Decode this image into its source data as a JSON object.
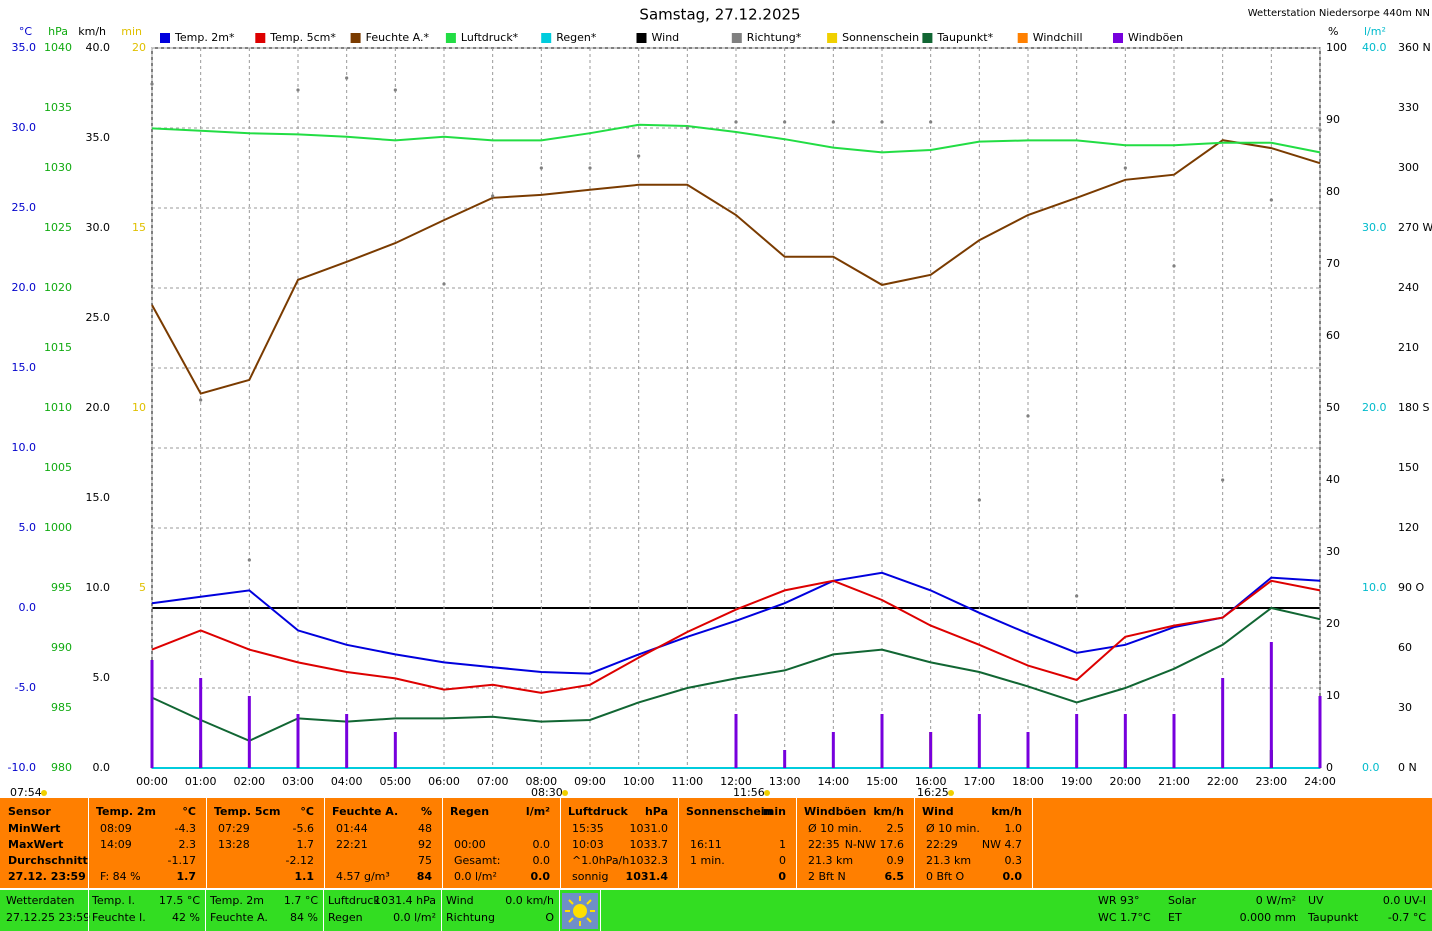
{
  "chart_data": {
    "type": "line",
    "title": "Samstag, 27.12.2025",
    "station": "Wetterstation Niedersorpe 440m NN",
    "grid": true,
    "xlim": [
      0,
      24
    ],
    "xticks": [
      {
        "value": 0,
        "label": "00:00"
      },
      {
        "value": 1,
        "label": "01:00"
      },
      {
        "value": 2,
        "label": "02:00"
      },
      {
        "value": 3,
        "label": "03:00"
      },
      {
        "value": 4,
        "label": "04:00"
      },
      {
        "value": 5,
        "label": "05:00"
      },
      {
        "value": 6,
        "label": "06:00"
      },
      {
        "value": 7,
        "label": "07:00"
      },
      {
        "value": 8,
        "label": "08:00"
      },
      {
        "value": 9,
        "label": "09:00"
      },
      {
        "value": 10,
        "label": "10:00"
      },
      {
        "value": 11,
        "label": "11:00"
      },
      {
        "value": 12,
        "label": "12:00"
      },
      {
        "value": 13,
        "label": "13:00"
      },
      {
        "value": 14,
        "label": "14:00"
      },
      {
        "value": 15,
        "label": "15:00"
      },
      {
        "value": 16,
        "label": "16:00"
      },
      {
        "value": 17,
        "label": "17:00"
      },
      {
        "value": 18,
        "label": "18:00"
      },
      {
        "value": 19,
        "label": "19:00"
      },
      {
        "value": 20,
        "label": "20:00"
      },
      {
        "value": 21,
        "label": "21:00"
      },
      {
        "value": 22,
        "label": "22:00"
      },
      {
        "value": 23,
        "label": "23:00"
      },
      {
        "value": 24,
        "label": "24:00"
      }
    ],
    "x": [
      0,
      1,
      2,
      3,
      4,
      5,
      6,
      7,
      8,
      9,
      10,
      11,
      12,
      13,
      14,
      15,
      16,
      17,
      18,
      19,
      20,
      21,
      22,
      23,
      24
    ],
    "sun_marks": [
      "07:54",
      "08:30",
      "11:56",
      "16:25"
    ],
    "axes": {
      "temp": {
        "unit": "°C",
        "color": "#0000cc",
        "lim": [
          -10,
          35
        ],
        "ticks": [
          {
            "value": -10,
            "label": "-10.0"
          },
          {
            "value": -5,
            "label": "-5.0"
          },
          {
            "value": 0,
            "label": "0.0"
          },
          {
            "value": 5,
            "label": "5.0"
          },
          {
            "value": 10,
            "label": "10.0"
          },
          {
            "value": 15,
            "label": "15.0"
          },
          {
            "value": 20,
            "label": "20.0"
          },
          {
            "value": 25,
            "label": "25.0"
          },
          {
            "value": 30,
            "label": "30.0"
          },
          {
            "value": 35,
            "label": "35.0"
          }
        ]
      },
      "pressure": {
        "unit": "hPa",
        "color": "#11aa11",
        "lim": [
          980,
          1040
        ],
        "ticks": [
          980,
          985,
          990,
          995,
          1000,
          1005,
          1010,
          1015,
          1020,
          1025,
          1030,
          1035,
          1040
        ]
      },
      "wind": {
        "unit": "km/h",
        "color": "#000000",
        "lim": [
          0,
          40
        ],
        "ticks": [
          {
            "value": 0,
            "label": "0.0"
          },
          {
            "value": 5,
            "label": "5.0"
          },
          {
            "value": 10,
            "label": "10.0"
          },
          {
            "value": 15,
            "label": "15.0"
          },
          {
            "value": 20,
            "label": "20.0"
          },
          {
            "value": 25,
            "label": "25.0"
          },
          {
            "value": 30,
            "label": "30.0"
          },
          {
            "value": 35,
            "label": "35.0"
          },
          {
            "value": 40,
            "label": "40.0"
          }
        ]
      },
      "sun": {
        "unit": "min",
        "color": "#e0c000",
        "lim": [
          0,
          20
        ],
        "ticks": [
          5,
          10,
          15,
          20
        ]
      },
      "humidity": {
        "unit": "%",
        "color": "#000000",
        "lim": [
          0,
          100
        ],
        "ticks": [
          0,
          10,
          20,
          30,
          40,
          50,
          60,
          70,
          80,
          90,
          100
        ]
      },
      "rain": {
        "unit": "l/m²",
        "color": "#00bbcc",
        "lim": [
          0,
          40
        ],
        "ticks": [
          {
            "value": 0,
            "label": "0.0"
          },
          {
            "value": 10,
            "label": "10.0"
          },
          {
            "value": 20,
            "label": "20.0"
          },
          {
            "value": 30,
            "label": "30.0"
          },
          {
            "value": 40,
            "label": "40.0"
          }
        ]
      },
      "direction": {
        "color": "#000000",
        "lim": [
          0,
          360
        ],
        "ticks": [
          {
            "value": 0,
            "label": "0 N"
          },
          30,
          60,
          {
            "value": 90,
            "label": "90 O"
          },
          120,
          150,
          {
            "value": 180,
            "label": "180 S"
          },
          210,
          240,
          {
            "value": 270,
            "label": "270 W"
          },
          300,
          330,
          {
            "value": 360,
            "label": "360 N"
          }
        ]
      }
    },
    "series": [
      {
        "name": "Temp. 2m*",
        "color": "#0000dd",
        "axis": "temp",
        "style": "line",
        "values": [
          0.3,
          0.7,
          1.1,
          -1.4,
          -2.3,
          -2.9,
          -3.4,
          -3.7,
          -4.0,
          -4.1,
          -2.9,
          -1.8,
          -0.8,
          0.3,
          1.7,
          2.2,
          1.1,
          -0.3,
          -1.6,
          -2.8,
          -2.3,
          -1.2,
          -0.6,
          1.9,
          1.7
        ]
      },
      {
        "name": "Temp. 5cm*",
        "color": "#dd0000",
        "axis": "temp",
        "style": "line",
        "values": [
          -2.6,
          -1.4,
          -2.6,
          -3.4,
          -4.0,
          -4.4,
          -5.1,
          -4.8,
          -5.3,
          -4.8,
          -3.1,
          -1.5,
          -0.1,
          1.1,
          1.7,
          0.5,
          -1.1,
          -2.3,
          -3.6,
          -4.5,
          -1.8,
          -1.1,
          -0.6,
          1.7,
          1.1
        ]
      },
      {
        "name": "Feuchte A.*",
        "color": "#7a3b00",
        "axis": "humidity",
        "style": "line",
        "values": [
          64.3,
          52,
          53.9,
          67.8,
          70.3,
          72.9,
          76.1,
          79.2,
          79.6,
          80.3,
          81,
          81,
          76.8,
          71,
          71,
          67.1,
          68.5,
          73.3,
          76.8,
          79.2,
          81.7,
          82.4,
          87.2,
          86.1,
          84
        ]
      },
      {
        "name": "Luftdruck*",
        "color": "#22dd44",
        "axis": "pressure",
        "style": "line",
        "values": [
          1033.3,
          1033.1,
          1032.9,
          1032.8,
          1032.6,
          1032.3,
          1032.6,
          1032.3,
          1032.3,
          1032.9,
          1033.6,
          1033.5,
          1033.0,
          1032.4,
          1031.7,
          1031.3,
          1031.5,
          1032.2,
          1032.3,
          1032.3,
          1031.9,
          1031.9,
          1032.1,
          1032.1,
          1031.3
        ]
      },
      {
        "name": "Regen*",
        "color": "#00ccdd",
        "axis": "rain",
        "style": "line",
        "values": [
          0,
          0,
          0,
          0,
          0,
          0,
          0,
          0,
          0,
          0,
          0,
          0,
          0,
          0,
          0,
          0,
          0,
          0,
          0,
          0,
          0,
          0,
          0,
          0,
          0
        ]
      },
      {
        "name": "Wind",
        "color": "#000000",
        "axis": "wind",
        "style": "bars",
        "values": [
          1,
          1,
          0,
          0,
          0,
          0,
          0,
          0,
          0,
          0,
          0,
          0,
          0,
          0,
          0,
          0,
          0,
          0,
          0,
          0,
          1,
          1,
          0,
          1,
          1
        ]
      },
      {
        "name": "Richtung*",
        "color": "#808080",
        "axis": "direction",
        "style": "dots",
        "values": [
          342,
          184,
          104,
          339,
          345,
          339,
          242,
          286,
          300,
          300,
          306,
          320,
          323,
          323,
          323,
          323,
          323,
          134,
          176,
          86,
          300,
          251,
          144,
          284,
          319
        ]
      },
      {
        "name": "Sonnenschein",
        "color": "#f0d000",
        "axis": "sun",
        "style": "bars",
        "values": [
          0,
          0,
          0,
          0,
          0,
          0,
          0,
          0,
          0,
          0,
          0,
          0,
          0,
          0,
          0,
          0,
          1,
          0,
          0,
          0,
          0,
          0,
          0,
          0,
          0
        ]
      },
      {
        "name": "Taupunkt*",
        "color": "#116633",
        "axis": "temp",
        "style": "line",
        "values": [
          -5.6,
          -7.0,
          -8.3,
          -6.9,
          -7.1,
          -6.9,
          -6.9,
          -6.8,
          -7.1,
          -7.0,
          -5.9,
          -5.0,
          -4.4,
          -3.9,
          -2.9,
          -2.6,
          -3.4,
          -4.0,
          -4.9,
          -5.9,
          -5.0,
          -3.8,
          -2.3,
          0.0,
          -0.7
        ]
      },
      {
        "name": "Windchill",
        "color": "#ff8000",
        "axis": "temp",
        "style": "line",
        "values": [
          null,
          null,
          null,
          null,
          null,
          null,
          null,
          null,
          null,
          null,
          null,
          null,
          null,
          null,
          null,
          null,
          null,
          null,
          null,
          null,
          null,
          null,
          null,
          null,
          null
        ]
      },
      {
        "name": "Windböen",
        "color": "#7700dd",
        "axis": "wind",
        "style": "bars",
        "values": [
          6,
          5,
          4,
          3,
          3,
          2,
          0,
          0,
          0,
          0,
          0,
          0,
          3,
          1,
          2,
          3,
          2,
          3,
          2,
          3,
          3,
          3,
          5,
          7,
          4
        ]
      }
    ]
  },
  "stats": {
    "row_labels": [
      "Sensor",
      "MinWert",
      "MaxWert",
      "Durchschnitt",
      "27.12. 23:59"
    ],
    "columns": [
      {
        "title": "Temp. 2m",
        "unit": "°C",
        "rows": [
          [
            "08:09",
            "-4.3"
          ],
          [
            "14:09",
            "2.3"
          ],
          [
            null,
            "-1.17"
          ],
          [
            "F: 84 %",
            "1.7"
          ]
        ]
      },
      {
        "title": "Temp. 5cm",
        "unit": "°C",
        "rows": [
          [
            "07:29",
            "-5.6"
          ],
          [
            "13:28",
            "1.7"
          ],
          [
            null,
            "-2.12"
          ],
          [
            null,
            "1.1"
          ]
        ]
      },
      {
        "title": "Feuchte A.",
        "unit": "%",
        "rows": [
          [
            "01:44",
            "48"
          ],
          [
            "22:21",
            "92"
          ],
          [
            null,
            "75"
          ],
          [
            "4.57 g/m³",
            "84"
          ]
        ]
      },
      {
        "title": "Regen",
        "unit": "l/m²",
        "rows": [
          [
            null,
            null
          ],
          [
            "00:00",
            "0.0"
          ],
          [
            "Gesamt:",
            "0.0"
          ],
          [
            "0.0 l/m²",
            "0.0"
          ]
        ]
      },
      {
        "title": "Luftdruck",
        "unit": "hPa",
        "rows": [
          [
            "15:35",
            "1031.0"
          ],
          [
            "10:03",
            "1033.7"
          ],
          [
            "^1.0hPa/h",
            "1032.3"
          ],
          [
            "sonnig",
            "1031.4"
          ]
        ]
      },
      {
        "title": "Sonnenschein",
        "unit": "min",
        "rows": [
          [
            null,
            null
          ],
          [
            "16:11",
            "1"
          ],
          [
            "1 min.",
            "0"
          ],
          [
            null,
            "0"
          ]
        ]
      },
      {
        "title": "Windböen",
        "unit": "km/h",
        "rows": [
          [
            "Ø 10 min.",
            "2.5"
          ],
          [
            "22:35",
            "N-NW 17.6"
          ],
          [
            "21.3 km",
            "0.9"
          ],
          [
            "2 Bft N",
            "6.5"
          ]
        ]
      },
      {
        "title": "Wind",
        "unit": "km/h",
        "rows": [
          [
            "Ø 10 min.",
            "1.0"
          ],
          [
            "22:29",
            "NW 4.7"
          ],
          [
            "21.3 km",
            "0.3"
          ],
          [
            "0 Bft O",
            "0.0"
          ]
        ]
      }
    ]
  },
  "current": {
    "station": [
      "Wetterdaten",
      "27.12.25 23:59"
    ],
    "groups": [
      [
        [
          "Temp. I.",
          "17.5 °C"
        ],
        [
          "Feuchte I.",
          "42 %"
        ]
      ],
      [
        [
          "Temp. 2m",
          "1.7 °C"
        ],
        [
          "Feuchte A.",
          "84 %"
        ]
      ],
      [
        [
          "Luftdruck",
          "1031.4 hPa"
        ],
        [
          "Regen",
          "0.0 l/m²"
        ]
      ],
      [
        [
          "Wind",
          "0.0 km/h"
        ],
        [
          "Richtung",
          "O"
        ]
      ],
      [
        [
          "WR 93°"
        ],
        [
          "WC 1.7°C"
        ]
      ],
      [
        [
          "Solar",
          "0 W/m²"
        ],
        [
          "ET",
          "0.000 mm"
        ]
      ],
      [
        [
          "UV",
          "0.0 UV-I"
        ],
        [
          "Taupunkt",
          "-0.7 °C"
        ]
      ]
    ]
  }
}
